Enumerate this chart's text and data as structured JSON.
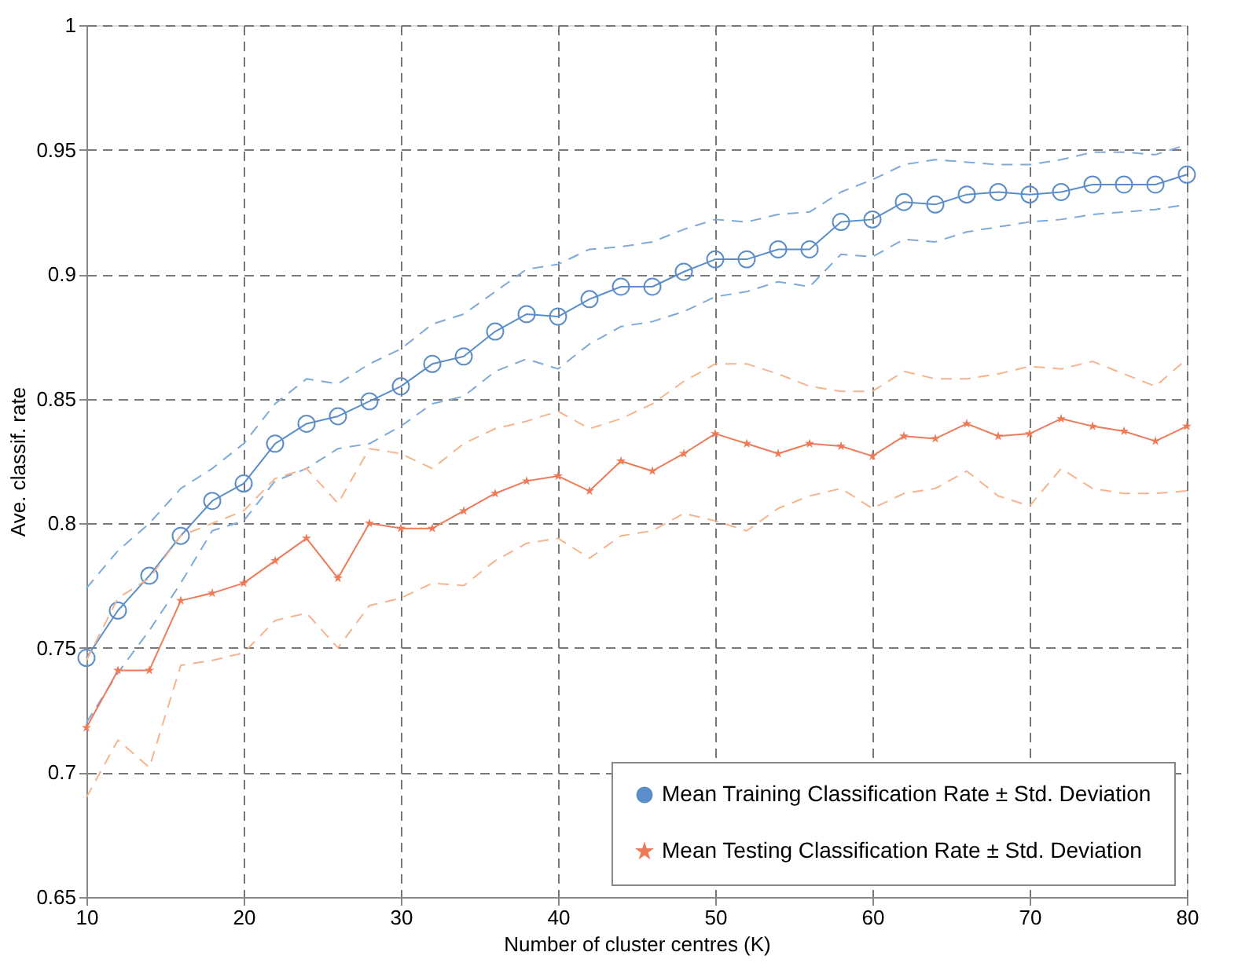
{
  "chart_data": {
    "type": "line",
    "xlabel": "Number of cluster centres (K)",
    "ylabel": "Ave. classif. rate",
    "x": [
      10,
      12,
      14,
      16,
      18,
      20,
      22,
      24,
      26,
      28,
      30,
      32,
      34,
      36,
      38,
      40,
      42,
      44,
      46,
      48,
      50,
      52,
      54,
      56,
      58,
      60,
      62,
      64,
      66,
      68,
      70,
      72,
      74,
      76,
      78,
      80
    ],
    "xlim": [
      10,
      80
    ],
    "xticks": [
      10,
      20,
      30,
      40,
      50,
      60,
      70,
      80
    ],
    "ylim": [
      0.65,
      1
    ],
    "yticks": [
      0.65,
      0.7,
      0.75,
      0.8,
      0.85,
      0.9,
      0.95,
      1
    ],
    "grid": true,
    "legend": "bottom right",
    "series": [
      {
        "name": "Mean Training Classification Rate ± Std. Deviation",
        "color": "#5b8ec8",
        "marker": "circle",
        "line_style": "solid",
        "values": [
          0.746,
          0.765,
          0.779,
          0.795,
          0.809,
          0.816,
          0.832,
          0.84,
          0.843,
          0.849,
          0.855,
          0.864,
          0.867,
          0.877,
          0.884,
          0.883,
          0.89,
          0.895,
          0.895,
          0.901,
          0.906,
          0.906,
          0.91,
          0.91,
          0.921,
          0.922,
          0.929,
          0.928,
          0.932,
          0.933,
          0.932,
          0.933,
          0.936,
          0.936,
          0.936,
          0.94
        ]
      },
      {
        "color": "#7fa9d8",
        "marker": "none",
        "line_style": "dashed",
        "values": [
          0.774,
          0.789,
          0.8,
          0.814,
          0.822,
          0.832,
          0.848,
          0.858,
          0.856,
          0.864,
          0.87,
          0.88,
          0.884,
          0.893,
          0.902,
          0.904,
          0.91,
          0.911,
          0.913,
          0.918,
          0.922,
          0.921,
          0.924,
          0.925,
          0.933,
          0.938,
          0.944,
          0.946,
          0.945,
          0.944,
          0.944,
          0.946,
          0.949,
          0.949,
          0.948,
          0.952
        ]
      },
      {
        "color": "#7fa9d8",
        "marker": "none",
        "line_style": "dashed",
        "values": [
          0.72,
          0.74,
          0.757,
          0.776,
          0.797,
          0.801,
          0.817,
          0.822,
          0.83,
          0.832,
          0.839,
          0.848,
          0.851,
          0.861,
          0.866,
          0.862,
          0.872,
          0.879,
          0.881,
          0.885,
          0.891,
          0.893,
          0.897,
          0.895,
          0.908,
          0.907,
          0.914,
          0.913,
          0.917,
          0.919,
          0.921,
          0.922,
          0.924,
          0.925,
          0.926,
          0.928
        ]
      },
      {
        "name": "Mean Testing Classification Rate ± Std. Deviation",
        "color": "#ee7a58",
        "marker": "star",
        "line_style": "solid",
        "values": [
          0.718,
          0.741,
          0.741,
          0.769,
          0.772,
          0.776,
          0.785,
          0.794,
          0.778,
          0.8,
          0.798,
          0.798,
          0.805,
          0.812,
          0.817,
          0.819,
          0.813,
          0.825,
          0.821,
          0.828,
          0.836,
          0.832,
          0.828,
          0.832,
          0.831,
          0.827,
          0.835,
          0.834,
          0.84,
          0.835,
          0.836,
          0.842,
          0.839,
          0.837,
          0.833,
          0.839
        ]
      },
      {
        "color": "#f5b48e",
        "marker": "none",
        "line_style": "dashed",
        "values": [
          0.745,
          0.77,
          0.778,
          0.795,
          0.8,
          0.805,
          0.818,
          0.822,
          0.808,
          0.83,
          0.828,
          0.822,
          0.832,
          0.838,
          0.841,
          0.845,
          0.838,
          0.842,
          0.848,
          0.857,
          0.864,
          0.864,
          0.86,
          0.855,
          0.853,
          0.853,
          0.861,
          0.858,
          0.858,
          0.86,
          0.863,
          0.862,
          0.865,
          0.86,
          0.855,
          0.866
        ]
      },
      {
        "color": "#f5b48e",
        "marker": "none",
        "line_style": "dashed",
        "values": [
          0.69,
          0.713,
          0.702,
          0.743,
          0.745,
          0.748,
          0.761,
          0.764,
          0.75,
          0.767,
          0.77,
          0.776,
          0.775,
          0.785,
          0.792,
          0.794,
          0.786,
          0.795,
          0.797,
          0.804,
          0.801,
          0.797,
          0.806,
          0.811,
          0.814,
          0.806,
          0.812,
          0.814,
          0.821,
          0.811,
          0.807,
          0.822,
          0.814,
          0.812,
          0.812,
          0.813
        ]
      }
    ]
  }
}
